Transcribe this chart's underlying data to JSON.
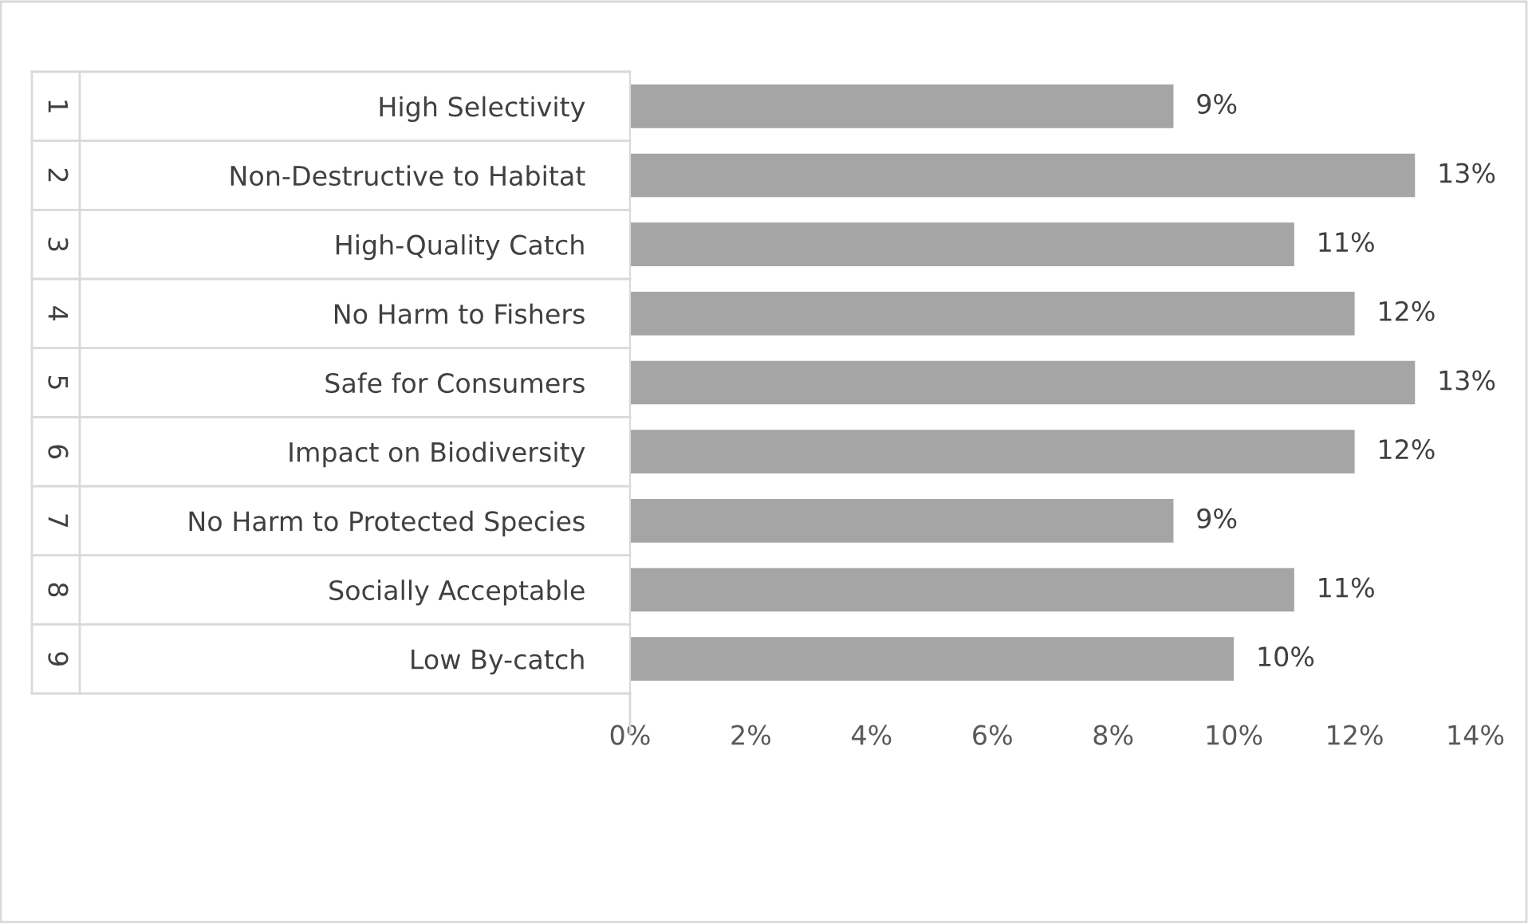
{
  "chart_data": {
    "type": "bar",
    "orientation": "horizontal",
    "categories": [
      "High Selectivity",
      "Non-Destructive to Habitat",
      "High-Quality Catch",
      "No Harm to Fishers",
      "Safe for Consumers",
      "Impact on Biodiversity",
      "No Harm to Protected Species",
      "Socially Acceptable",
      "Low By-catch"
    ],
    "values": [
      9,
      13,
      11,
      12,
      13,
      12,
      9,
      11,
      10
    ],
    "value_labels": [
      "9%",
      "13%",
      "11%",
      "12%",
      "13%",
      "12%",
      "9%",
      "11%",
      "10%"
    ],
    "color": "#a5a5a5",
    "xlim": [
      0,
      14
    ],
    "xticks": [
      {
        "value": 0,
        "label": "0%"
      },
      {
        "value": 2,
        "label": "2%"
      },
      {
        "value": 4,
        "label": "4%"
      },
      {
        "value": 6,
        "label": "6%"
      },
      {
        "value": 8,
        "label": "8%"
      },
      {
        "value": 10,
        "label": "10%"
      },
      {
        "value": 12,
        "label": "12%"
      },
      {
        "value": 14,
        "label": "14%"
      }
    ],
    "annotations": [
      "1",
      "2",
      "3",
      "4",
      "5",
      "6",
      "7",
      "8",
      "9"
    ],
    "grid": false
  }
}
